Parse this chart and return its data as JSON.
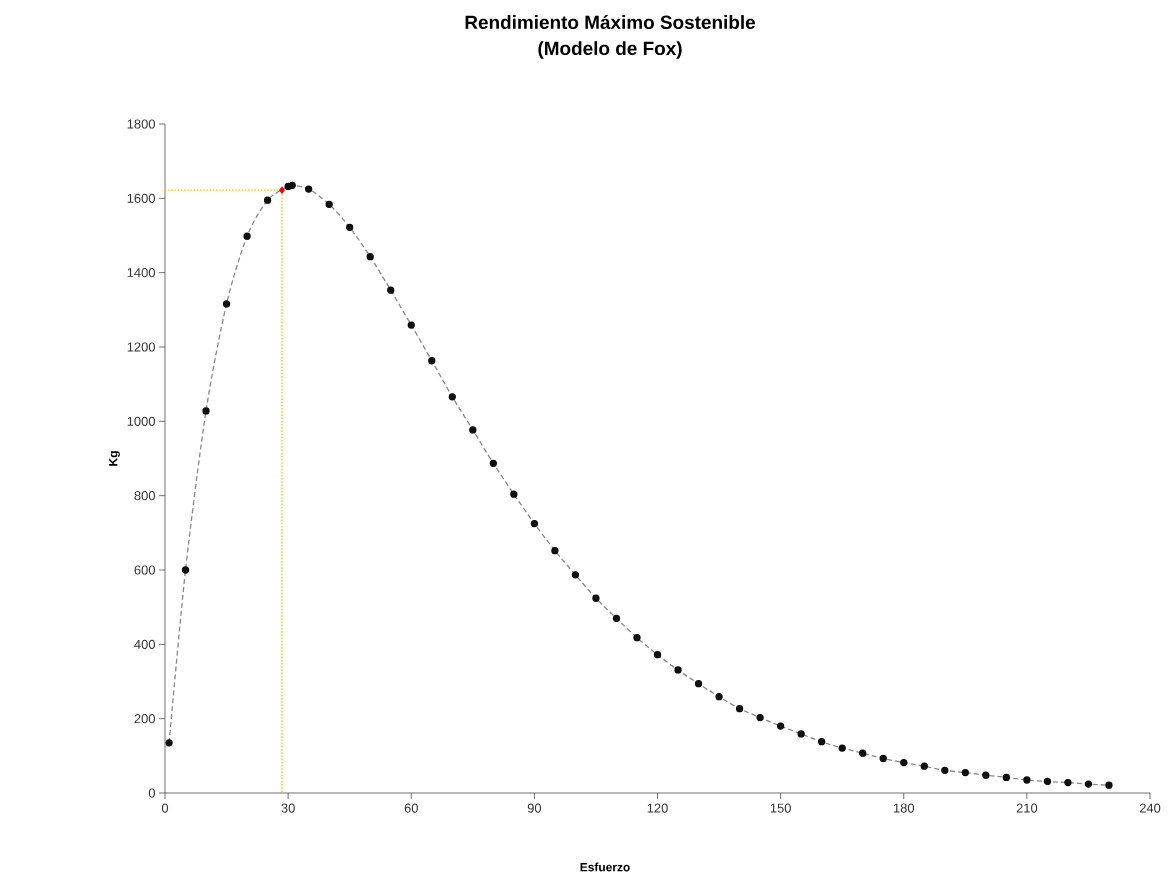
{
  "chart_data": {
    "type": "scatter",
    "title": "Rendimiento Máximo Sostenible",
    "subtitle": "(Modelo de Fox)",
    "xlabel": "Esfuerzo",
    "ylabel": "Kg",
    "xlim": [
      0,
      240
    ],
    "xticks": [
      0,
      30,
      60,
      90,
      120,
      150,
      180,
      210,
      240
    ],
    "ylim": [
      0,
      1800
    ],
    "yticks": [
      0,
      200,
      400,
      600,
      800,
      1000,
      1200,
      1400,
      1600,
      1800
    ],
    "grid": false,
    "series": [
      {
        "type": "line",
        "color": "#ffc000",
        "line_style": "dotted",
        "marker": "none",
        "x": [
          0,
          28.5,
          28.5
        ],
        "values": [
          1622,
          1622,
          0
        ]
      },
      {
        "type": "line",
        "color": "#111111",
        "line_style": "dashed",
        "marker": "circle",
        "x": [
          1,
          5,
          10,
          15,
          20,
          25,
          30,
          31,
          35,
          40,
          45,
          50,
          55,
          60,
          65,
          70,
          75,
          80,
          85,
          90,
          95,
          100,
          105,
          110,
          115,
          120,
          125,
          130,
          135,
          140,
          145,
          150,
          155,
          160,
          165,
          170,
          175,
          180,
          185,
          190,
          195,
          200,
          205,
          210,
          215,
          220,
          225,
          230
        ],
        "values": [
          135,
          600,
          1028,
          1316,
          1498,
          1595,
          1632,
          1635,
          1625,
          1584,
          1522,
          1443,
          1353,
          1259,
          1163,
          1066,
          977,
          887,
          804,
          725,
          652,
          587,
          524,
          470,
          418,
          372,
          331,
          294,
          259,
          227,
          203,
          180,
          159,
          138,
          121,
          107,
          93,
          82,
          72,
          61,
          55,
          48,
          42,
          35,
          31,
          28,
          24,
          21
        ]
      },
      {
        "color": "#ff0000",
        "marker": "diamond",
        "x": [
          28.5
        ],
        "values": [
          1622
        ]
      }
    ]
  }
}
